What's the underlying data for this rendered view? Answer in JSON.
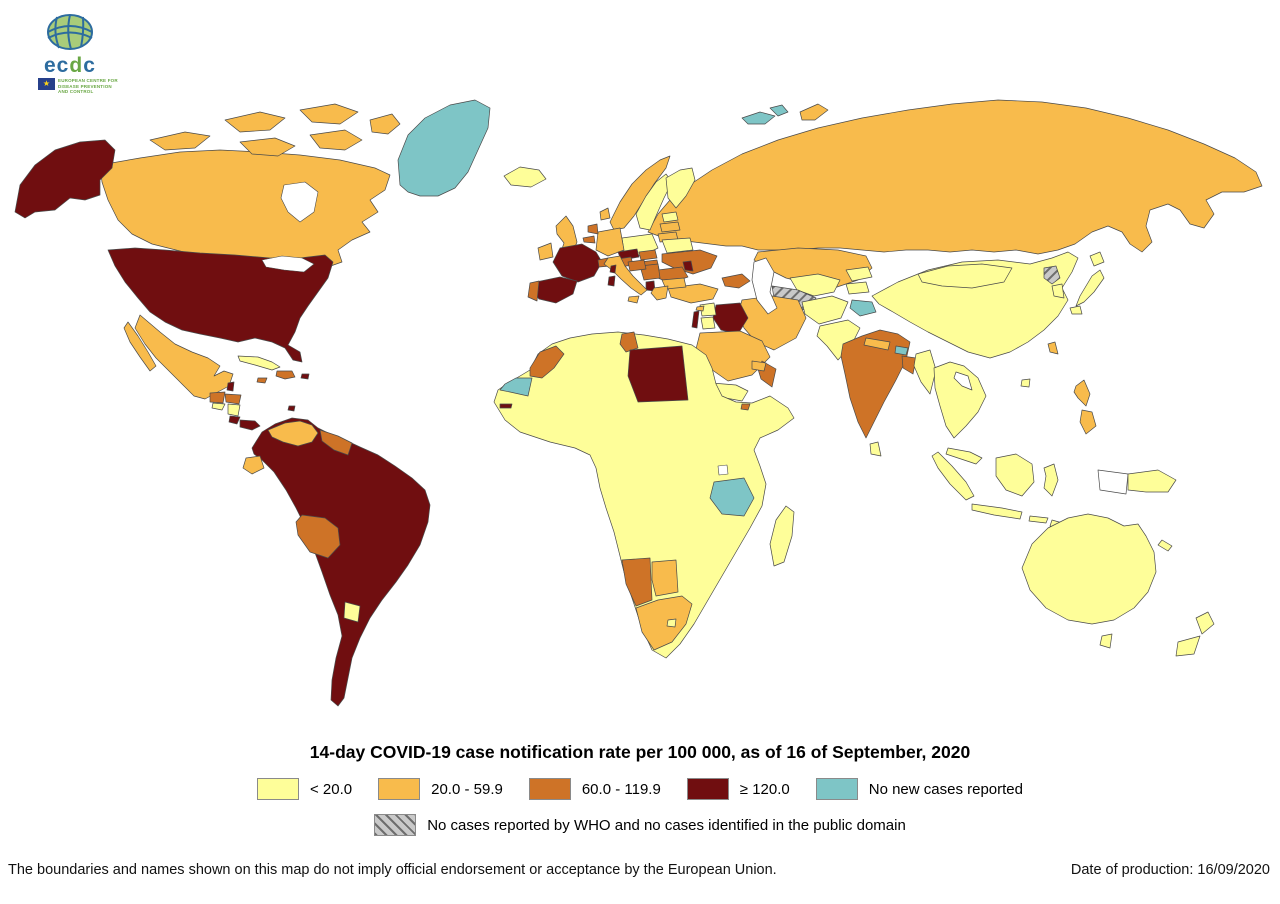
{
  "logo": {
    "brand": "ecdc",
    "org_lines": [
      "EUROPEAN CENTRE FOR",
      "DISEASE PREVENTION",
      "AND CONTROL"
    ]
  },
  "title": "14-day COVID-19 case notification rate per 100 000, as of 16 of September, 2020",
  "legend": {
    "categories": [
      {
        "key": "lt20",
        "label": "< 20.0",
        "color": "#FEFE99"
      },
      {
        "key": "r20_59",
        "label": "20.0 - 59.9",
        "color": "#F8BB4C"
      },
      {
        "key": "r60_119",
        "label": "60.0 - 119.9",
        "color": "#CE7327"
      },
      {
        "key": "gte120",
        "label": "≥ 120.0",
        "color": "#700E10"
      },
      {
        "key": "none_new",
        "label": "No new cases reported",
        "color": "#7EC5C6"
      }
    ],
    "hatched": {
      "key": "no_data",
      "label": "No cases reported by WHO and no cases identified in the public domain",
      "base_color": "#C9C9C9",
      "stripe_color": "#6E6E6E"
    }
  },
  "footer": {
    "disclaimer": "The boundaries and names shown on this map do not imply official endorsement or acceptance by the European Union.",
    "production": "Date of production: 16/09/2020"
  },
  "map": {
    "water_color": "#FFFFFF",
    "blank_color": "#FFFFFF",
    "border_color": "#4A4A4A",
    "regions": [
      {
        "id": "russia",
        "cat": "r20_59"
      },
      {
        "id": "novaya-zemlya",
        "cat": "r20_59"
      },
      {
        "id": "canada",
        "cat": "r20_59"
      },
      {
        "id": "arctic-islands",
        "cat": "r20_59"
      },
      {
        "id": "alaska",
        "cat": "gte120"
      },
      {
        "id": "greenland",
        "cat": "none_new"
      },
      {
        "id": "svalbard",
        "cat": "none_new"
      },
      {
        "id": "usa",
        "cat": "gte120"
      },
      {
        "id": "mexico",
        "cat": "r20_59"
      },
      {
        "id": "belize",
        "cat": "gte120"
      },
      {
        "id": "guatemala",
        "cat": "r60_119"
      },
      {
        "id": "honduras",
        "cat": "r60_119"
      },
      {
        "id": "el-salvador",
        "cat": "lt20"
      },
      {
        "id": "nicaragua",
        "cat": "lt20"
      },
      {
        "id": "costa-rica",
        "cat": "gte120"
      },
      {
        "id": "panama",
        "cat": "gte120"
      },
      {
        "id": "cuba",
        "cat": "lt20"
      },
      {
        "id": "jamaica",
        "cat": "r60_119"
      },
      {
        "id": "hispaniola",
        "cat": "r60_119"
      },
      {
        "id": "puerto-rico",
        "cat": "gte120"
      },
      {
        "id": "trinidad",
        "cat": "gte120"
      },
      {
        "id": "south-america-core",
        "cat": "gte120"
      },
      {
        "id": "venezuela",
        "cat": "r20_59"
      },
      {
        "id": "guyana-suriname",
        "cat": "r60_119"
      },
      {
        "id": "ecuador",
        "cat": "r20_59"
      },
      {
        "id": "bolivia",
        "cat": "r60_119"
      },
      {
        "id": "uruguay",
        "cat": "lt20"
      },
      {
        "id": "iceland",
        "cat": "lt20"
      },
      {
        "id": "ireland",
        "cat": "r20_59"
      },
      {
        "id": "united-kingdom",
        "cat": "r20_59"
      },
      {
        "id": "norway",
        "cat": "r20_59"
      },
      {
        "id": "sweden",
        "cat": "lt20"
      },
      {
        "id": "finland",
        "cat": "lt20"
      },
      {
        "id": "denmark",
        "cat": "r20_59"
      },
      {
        "id": "estonia",
        "cat": "lt20"
      },
      {
        "id": "latvia",
        "cat": "r20_59"
      },
      {
        "id": "lithuania",
        "cat": "r20_59"
      },
      {
        "id": "belarus",
        "cat": "lt20"
      },
      {
        "id": "poland",
        "cat": "lt20"
      },
      {
        "id": "germany",
        "cat": "r20_59"
      },
      {
        "id": "netherlands",
        "cat": "r60_119"
      },
      {
        "id": "belgium",
        "cat": "r60_119"
      },
      {
        "id": "france",
        "cat": "gte120"
      },
      {
        "id": "spain",
        "cat": "gte120"
      },
      {
        "id": "portugal",
        "cat": "r60_119"
      },
      {
        "id": "czechia",
        "cat": "gte120"
      },
      {
        "id": "austria",
        "cat": "r60_119"
      },
      {
        "id": "switzerland",
        "cat": "r60_119"
      },
      {
        "id": "slovakia",
        "cat": "r60_119"
      },
      {
        "id": "hungary",
        "cat": "r60_119"
      },
      {
        "id": "ukraine",
        "cat": "r60_119"
      },
      {
        "id": "moldova",
        "cat": "gte120"
      },
      {
        "id": "romania",
        "cat": "r60_119"
      },
      {
        "id": "bulgaria",
        "cat": "r20_59"
      },
      {
        "id": "west-balkans",
        "cat": "r60_119"
      },
      {
        "id": "croatia-slovenia",
        "cat": "r60_119"
      },
      {
        "id": "montenegro-albania",
        "cat": "gte120"
      },
      {
        "id": "greece",
        "cat": "r20_59"
      },
      {
        "id": "italy",
        "cat": "r20_59"
      },
      {
        "id": "sicily",
        "cat": "r20_59"
      },
      {
        "id": "sardinia",
        "cat": "gte120"
      },
      {
        "id": "corsica",
        "cat": "gte120"
      },
      {
        "id": "turkey",
        "cat": "r20_59"
      },
      {
        "id": "cyprus",
        "cat": "r20_59"
      },
      {
        "id": "caucasus",
        "cat": "r60_119"
      },
      {
        "id": "syria",
        "cat": "lt20"
      },
      {
        "id": "israel-lebanon",
        "cat": "gte120"
      },
      {
        "id": "jordan",
        "cat": "lt20"
      },
      {
        "id": "iraq",
        "cat": "gte120"
      },
      {
        "id": "iran",
        "cat": "r20_59"
      },
      {
        "id": "saudi-arabia",
        "cat": "r20_59"
      },
      {
        "id": "yemen",
        "cat": "lt20"
      },
      {
        "id": "oman",
        "cat": "r60_119"
      },
      {
        "id": "uae",
        "cat": "r20_59"
      },
      {
        "id": "kazakhstan",
        "cat": "r20_59"
      },
      {
        "id": "uzbekistan",
        "cat": "lt20"
      },
      {
        "id": "turkmenistan",
        "cat": "no_data"
      },
      {
        "id": "kyrgyzstan",
        "cat": "lt20"
      },
      {
        "id": "tajikistan",
        "cat": "lt20"
      },
      {
        "id": "afghanistan",
        "cat": "lt20"
      },
      {
        "id": "pakistan",
        "cat": "lt20"
      },
      {
        "id": "kashmir",
        "cat": "none_new"
      },
      {
        "id": "india",
        "cat": "r60_119"
      },
      {
        "id": "nepal",
        "cat": "r20_59"
      },
      {
        "id": "bhutan",
        "cat": "none_new"
      },
      {
        "id": "bangladesh",
        "cat": "r60_119"
      },
      {
        "id": "sri-lanka",
        "cat": "lt20"
      },
      {
        "id": "myanmar",
        "cat": "lt20"
      },
      {
        "id": "china",
        "cat": "lt20"
      },
      {
        "id": "mongolia",
        "cat": "lt20"
      },
      {
        "id": "taiwan",
        "cat": "r20_59"
      },
      {
        "id": "hainan",
        "cat": "lt20"
      },
      {
        "id": "indochina",
        "cat": "lt20"
      },
      {
        "id": "laos",
        "cat": "blank"
      },
      {
        "id": "malaysia",
        "cat": "lt20"
      },
      {
        "id": "sumatra",
        "cat": "lt20"
      },
      {
        "id": "java",
        "cat": "lt20"
      },
      {
        "id": "borneo",
        "cat": "lt20"
      },
      {
        "id": "sulawesi",
        "cat": "lt20"
      },
      {
        "id": "lesser-sunda",
        "cat": "lt20"
      },
      {
        "id": "west-papua",
        "cat": "blank"
      },
      {
        "id": "papua-new-guinea",
        "cat": "lt20"
      },
      {
        "id": "philippines",
        "cat": "r20_59"
      },
      {
        "id": "japan",
        "cat": "lt20"
      },
      {
        "id": "south-korea",
        "cat": "lt20"
      },
      {
        "id": "north-korea",
        "cat": "no_data"
      },
      {
        "id": "africa-mainland",
        "cat": "lt20"
      },
      {
        "id": "morocco",
        "cat": "r60_119"
      },
      {
        "id": "western-sahara",
        "cat": "none_new"
      },
      {
        "id": "tunisia",
        "cat": "r60_119"
      },
      {
        "id": "libya",
        "cat": "gte120"
      },
      {
        "id": "tanzania",
        "cat": "none_new"
      },
      {
        "id": "namibia",
        "cat": "r60_119"
      },
      {
        "id": "botswana",
        "cat": "r20_59"
      },
      {
        "id": "south-africa",
        "cat": "r20_59"
      },
      {
        "id": "lesotho",
        "cat": "lt20"
      },
      {
        "id": "madagascar",
        "cat": "lt20"
      },
      {
        "id": "gambia",
        "cat": "gte120"
      },
      {
        "id": "djibouti",
        "cat": "r60_119"
      },
      {
        "id": "australia",
        "cat": "lt20"
      },
      {
        "id": "tasmania",
        "cat": "lt20"
      },
      {
        "id": "new-zealand",
        "cat": "lt20"
      },
      {
        "id": "new-caledonia",
        "cat": "lt20"
      },
      {
        "id": "hudson-bay",
        "cat": "water"
      },
      {
        "id": "great-lakes",
        "cat": "water"
      },
      {
        "id": "caspian-sea",
        "cat": "water"
      },
      {
        "id": "lake-victoria",
        "cat": "water"
      }
    ]
  }
}
